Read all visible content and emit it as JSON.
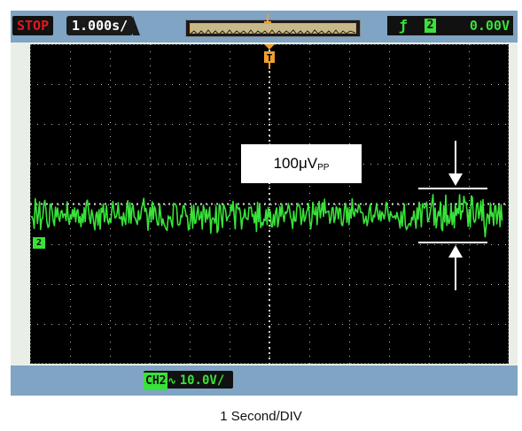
{
  "status": {
    "run_state": "STOP",
    "timebase": "1.000s/"
  },
  "trigger": {
    "edge_symbol": "ƒ",
    "source_channel": "2",
    "level": "0.00V",
    "marker_letter": "T"
  },
  "channel": {
    "marker_label": "2",
    "name": "CH2",
    "coupling_symbol": "∿",
    "scale": "10.0V/"
  },
  "annotation": {
    "value": "100μV",
    "subscript": "PP"
  },
  "caption": "1 Second/DIV",
  "colors": {
    "trace": "#39e239",
    "trigger": "#f0a030",
    "stop": "#e0181b",
    "frame": "#7fa4c4"
  },
  "icons": {
    "memory_window": "waveform-window",
    "arrows": "peak-to-peak-arrows"
  }
}
